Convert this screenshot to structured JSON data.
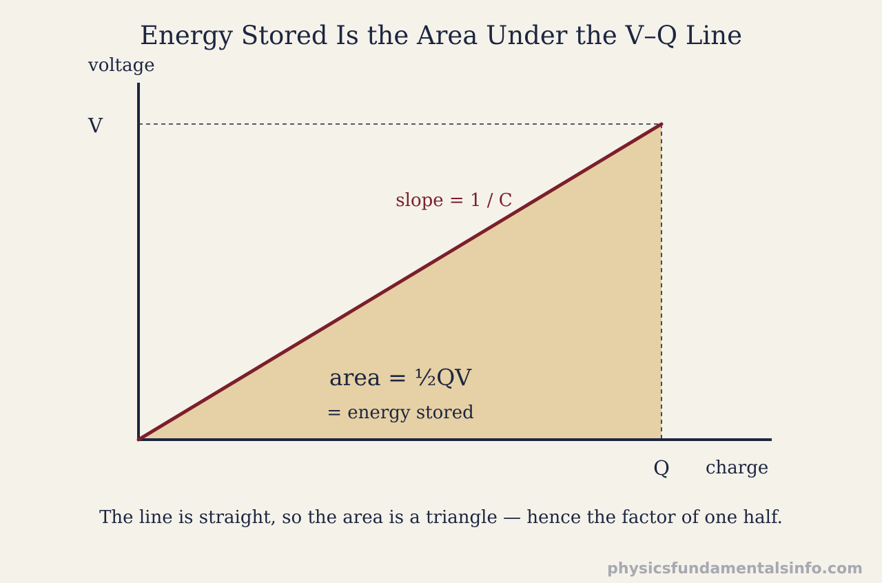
{
  "title": "Energy Stored Is the Area Under the V–Q Line",
  "axes": {
    "y_label": "voltage",
    "x_label": "charge",
    "y_marker": "V",
    "x_marker": "Q"
  },
  "annotations": {
    "slope": "slope = 1 / C",
    "area": "area = ½QV",
    "area_meaning": "= energy stored"
  },
  "caption": "The line is straight, so the area is a triangle — hence the factor of one half.",
  "watermark": "physicsfundamentalsinfo.com",
  "colors": {
    "background": "#f5f2ea",
    "axis": "#1c2640",
    "line": "#7b1f2b",
    "fill": "#e6d0a5",
    "text": "#1c2640",
    "watermark": "#a7a9b2"
  }
}
